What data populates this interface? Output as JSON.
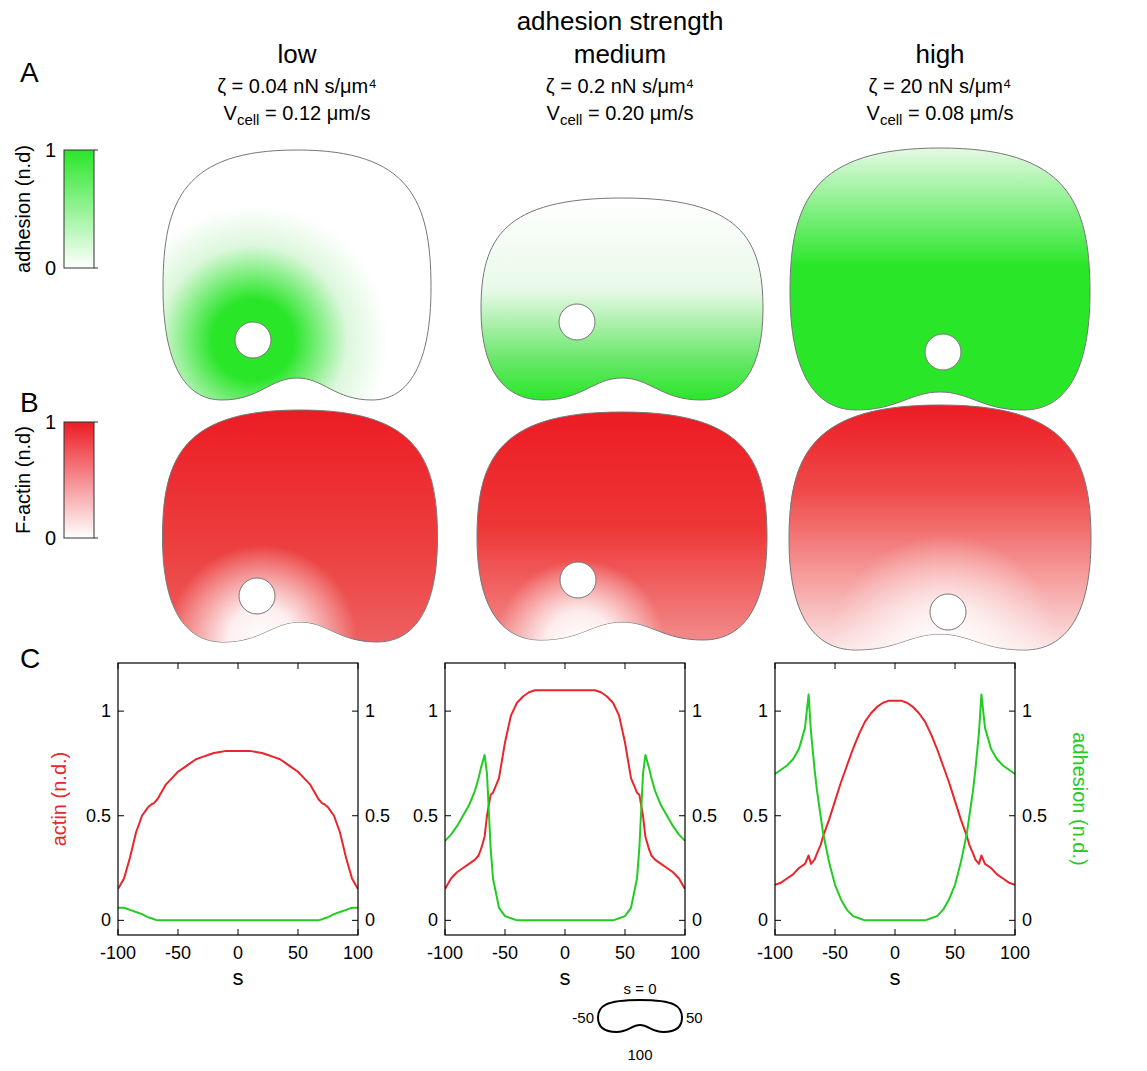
{
  "header": {
    "title": "adhesion strength"
  },
  "columns": [
    {
      "label": "low",
      "zeta": "ζ = 0.04 nN s/μm⁴",
      "velocity_symbol": "V",
      "velocity_subscript": "cell",
      "velocity_text": " = 0.12 μm/s"
    },
    {
      "label": "medium",
      "zeta": "ζ = 0.2 nN s/μm⁴",
      "velocity_symbol": "V",
      "velocity_subscript": "cell",
      "velocity_text": " = 0.20 μm/s"
    },
    {
      "label": "high",
      "zeta": "ζ = 20 nN s/μm⁴",
      "velocity_symbol": "V",
      "velocity_subscript": "cell",
      "velocity_text": " = 0.08 μm/s"
    }
  ],
  "panels": {
    "A": {
      "letter": "A",
      "colorbar": {
        "label": "adhesion (n.d)",
        "range": [
          0,
          1
        ],
        "ticks": [
          0,
          1
        ],
        "color": "#29e629"
      }
    },
    "B": {
      "letter": "B",
      "colorbar": {
        "label": "F-actin (n.d)",
        "range": [
          0,
          1
        ],
        "ticks": [
          0,
          1
        ],
        "color": "#ec1c24"
      }
    },
    "C": {
      "letter": "C"
    }
  },
  "chart_data": [
    {
      "type": "line",
      "xlabel": "s",
      "ylabel": "actin (n.d.)",
      "x": [
        -100,
        -95,
        -90,
        -85,
        -80,
        -75,
        -72,
        -70,
        -67,
        -65,
        -62,
        -60,
        -55,
        -50,
        -45,
        -40,
        -35,
        -30,
        -25,
        -20,
        -15,
        -10,
        -5,
        0,
        5,
        10,
        15,
        20,
        25,
        30,
        35,
        40,
        45,
        50,
        55,
        60,
        62,
        65,
        67,
        70,
        72,
        75,
        80,
        85,
        90,
        95,
        100
      ],
      "series": [
        {
          "color": "#e8262b",
          "values": [
            0.15,
            0.2,
            0.3,
            0.42,
            0.5,
            0.54,
            0.555,
            0.56,
            0.58,
            0.6,
            0.63,
            0.65,
            0.68,
            0.71,
            0.73,
            0.75,
            0.77,
            0.78,
            0.79,
            0.8,
            0.805,
            0.81,
            0.81,
            0.81,
            0.81,
            0.81,
            0.805,
            0.8,
            0.79,
            0.78,
            0.77,
            0.75,
            0.73,
            0.71,
            0.68,
            0.65,
            0.63,
            0.6,
            0.58,
            0.56,
            0.555,
            0.54,
            0.5,
            0.42,
            0.3,
            0.2,
            0.15
          ]
        },
        {
          "color": "#22cc22",
          "axis": "y2",
          "values": [
            0.06,
            0.06,
            0.05,
            0.04,
            0.03,
            0.015,
            0.01,
            0.005,
            0,
            0,
            0,
            0,
            0,
            0,
            0,
            0,
            0,
            0,
            0,
            0,
            0,
            0,
            0,
            0,
            0,
            0,
            0,
            0,
            0,
            0,
            0,
            0,
            0,
            0,
            0,
            0,
            0,
            0,
            0,
            0.005,
            0.01,
            0.015,
            0.03,
            0.04,
            0.05,
            0.06,
            0.06
          ]
        }
      ],
      "xlim": [
        -100,
        100
      ],
      "xticks": [
        -100,
        -50,
        0,
        50,
        100
      ],
      "ylim": [
        -0.07,
        1.23
      ],
      "yticks": [
        0,
        0.5,
        1
      ],
      "y2lim": [
        -0.07,
        1.23
      ],
      "y2ticks": [
        0,
        0.5,
        1
      ]
    },
    {
      "type": "line",
      "xlabel": "s",
      "x": [
        -100,
        -95,
        -90,
        -85,
        -80,
        -75,
        -72,
        -70,
        -67,
        -65,
        -62,
        -60,
        -55,
        -50,
        -45,
        -40,
        -35,
        -30,
        -25,
        -20,
        -15,
        -10,
        -5,
        0,
        5,
        10,
        15,
        20,
        25,
        30,
        35,
        40,
        45,
        50,
        55,
        60,
        62,
        65,
        67,
        70,
        72,
        75,
        80,
        85,
        90,
        95,
        100
      ],
      "series": [
        {
          "color": "#e8262b",
          "values": [
            0.15,
            0.2,
            0.23,
            0.25,
            0.27,
            0.29,
            0.31,
            0.34,
            0.4,
            0.5,
            0.6,
            0.61,
            0.68,
            0.85,
            0.98,
            1.04,
            1.07,
            1.09,
            1.1,
            1.1,
            1.1,
            1.1,
            1.1,
            1.1,
            1.1,
            1.1,
            1.1,
            1.1,
            1.1,
            1.09,
            1.07,
            1.04,
            0.98,
            0.85,
            0.68,
            0.61,
            0.6,
            0.5,
            0.4,
            0.34,
            0.31,
            0.29,
            0.27,
            0.25,
            0.23,
            0.2,
            0.15
          ]
        },
        {
          "color": "#22cc22",
          "axis": "y2",
          "values": [
            0.38,
            0.41,
            0.45,
            0.5,
            0.55,
            0.62,
            0.68,
            0.73,
            0.79,
            0.7,
            0.35,
            0.2,
            0.06,
            0.02,
            0.01,
            0,
            0,
            0,
            0,
            0,
            0,
            0,
            0,
            0,
            0,
            0,
            0,
            0,
            0,
            0,
            0,
            0,
            0.01,
            0.02,
            0.06,
            0.2,
            0.35,
            0.7,
            0.79,
            0.73,
            0.68,
            0.62,
            0.55,
            0.5,
            0.45,
            0.41,
            0.38
          ]
        }
      ],
      "xlim": [
        -100,
        100
      ],
      "xticks": [
        -100,
        -50,
        0,
        50,
        100
      ],
      "ylim": [
        -0.07,
        1.23
      ],
      "yticks": [
        0,
        0.5,
        1
      ],
      "y2lim": [
        -0.07,
        1.23
      ],
      "y2ticks": [
        0,
        0.5,
        1
      ]
    },
    {
      "type": "line",
      "xlabel": "s",
      "y2label": "adhesion (n.d.)",
      "x": [
        -100,
        -95,
        -90,
        -85,
        -80,
        -75,
        -72,
        -70,
        -67,
        -65,
        -62,
        -60,
        -55,
        -50,
        -45,
        -40,
        -35,
        -30,
        -25,
        -20,
        -15,
        -10,
        -5,
        0,
        5,
        10,
        15,
        20,
        25,
        30,
        35,
        40,
        45,
        50,
        55,
        60,
        62,
        65,
        67,
        70,
        72,
        75,
        80,
        85,
        90,
        95,
        100
      ],
      "series": [
        {
          "color": "#e8262b",
          "values": [
            0.17,
            0.18,
            0.2,
            0.22,
            0.25,
            0.27,
            0.31,
            0.27,
            0.29,
            0.32,
            0.36,
            0.4,
            0.48,
            0.57,
            0.66,
            0.74,
            0.82,
            0.89,
            0.95,
            0.99,
            1.02,
            1.04,
            1.05,
            1.05,
            1.05,
            1.04,
            1.02,
            0.99,
            0.95,
            0.89,
            0.82,
            0.74,
            0.66,
            0.57,
            0.48,
            0.4,
            0.36,
            0.32,
            0.29,
            0.27,
            0.31,
            0.27,
            0.25,
            0.22,
            0.2,
            0.18,
            0.17
          ]
        },
        {
          "color": "#22cc22",
          "axis": "y2",
          "values": [
            0.7,
            0.72,
            0.74,
            0.77,
            0.82,
            0.92,
            1.08,
            0.9,
            0.72,
            0.62,
            0.5,
            0.42,
            0.28,
            0.17,
            0.1,
            0.05,
            0.02,
            0.01,
            0,
            0,
            0,
            0,
            0,
            0,
            0,
            0,
            0,
            0,
            0,
            0.01,
            0.02,
            0.05,
            0.1,
            0.17,
            0.28,
            0.42,
            0.5,
            0.62,
            0.72,
            0.9,
            1.08,
            0.92,
            0.82,
            0.77,
            0.74,
            0.72,
            0.7
          ]
        }
      ],
      "xlim": [
        -100,
        100
      ],
      "xticks": [
        -100,
        -50,
        0,
        50,
        100
      ],
      "ylim": [
        -0.07,
        1.23
      ],
      "yticks": [
        0,
        0.5,
        1
      ],
      "y2lim": [
        -0.07,
        1.23
      ],
      "y2ticks": [
        0,
        0.5,
        1
      ]
    }
  ],
  "schematic": {
    "top": "s = 0",
    "left": "-50",
    "right": "50",
    "bottom": "100"
  }
}
